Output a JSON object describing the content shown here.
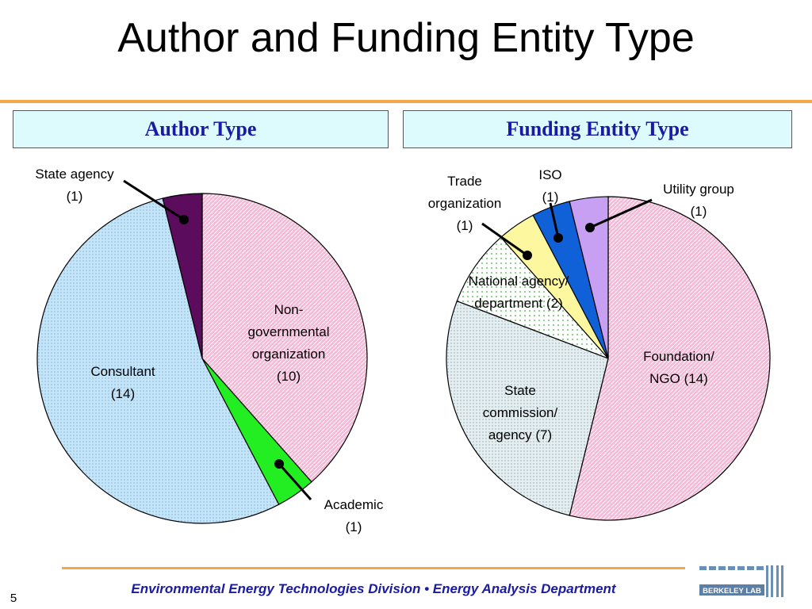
{
  "title": "Author and Funding Entity Type",
  "panels": {
    "left_header": "Author Type",
    "right_header": "Funding Entity Type"
  },
  "chart_data": [
    {
      "type": "pie",
      "title": "Author Type",
      "slices": [
        {
          "label": "Non-governmental organization",
          "value": 10,
          "display": [
            "Non-",
            "governmental",
            "organization",
            "(10)"
          ],
          "color": "#f7b4d6"
        },
        {
          "label": "Academic",
          "value": 1,
          "display": [
            "Academic",
            "(1)"
          ],
          "color": "#22ee22"
        },
        {
          "label": "Consultant",
          "value": 14,
          "display": [
            "Consultant",
            "(14)"
          ],
          "color": "#bfe2f7"
        },
        {
          "label": "State agency",
          "value": 1,
          "display": [
            "State agency",
            "(1)"
          ],
          "color": "#5c0c5c"
        }
      ]
    },
    {
      "type": "pie",
      "title": "Funding Entity Type",
      "slices": [
        {
          "label": "Foundation/ NGO",
          "value": 14,
          "display": [
            "Foundation/",
            "NGO (14)"
          ],
          "color": "#f7b4d6"
        },
        {
          "label": "State commission/ agency",
          "value": 7,
          "display": [
            "State",
            "commission/",
            "agency (7)"
          ],
          "color": "#d8e8ec"
        },
        {
          "label": "National agency/ department",
          "value": 2,
          "display": [
            "National agency/",
            "department (2)"
          ],
          "color": "#f4fbf4"
        },
        {
          "label": "Trade organization",
          "value": 1,
          "display": [
            "Trade",
            "organization",
            "(1)"
          ],
          "color": "#fdf7a0"
        },
        {
          "label": "ISO",
          "value": 1,
          "display": [
            "ISO",
            "(1)"
          ],
          "color": "#1060d8"
        },
        {
          "label": "Utility group",
          "value": 1,
          "display": [
            "Utility group",
            "(1)"
          ],
          "color": "#c7a0f4"
        }
      ]
    }
  ],
  "footer": {
    "text": "Environmental Energy Technologies Division  •  Energy Analysis Department",
    "page_number": "5",
    "logo_text": "BERKELEY LAB"
  }
}
